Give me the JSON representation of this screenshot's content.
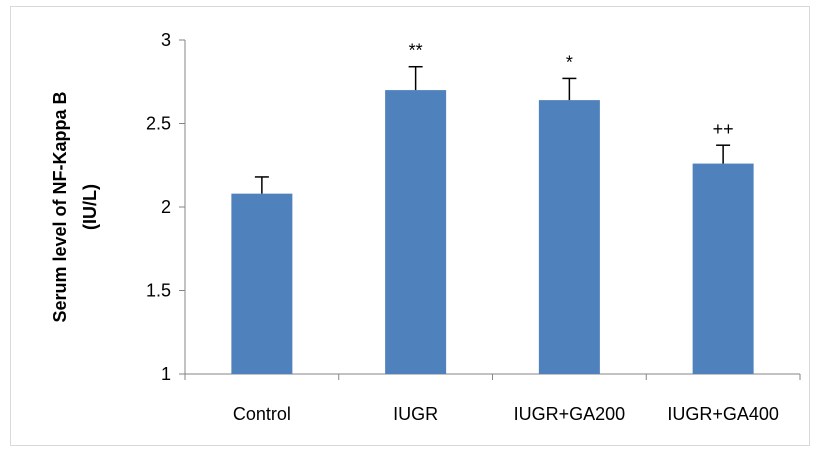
{
  "chart_data": {
    "type": "bar",
    "categories": [
      "Control",
      "IUGR",
      "IUGR+GA200",
      "IUGR+GA400"
    ],
    "values": [
      2.08,
      2.7,
      2.64,
      2.26
    ],
    "errors": [
      0.1,
      0.14,
      0.13,
      0.11
    ],
    "annotations": [
      "",
      "**",
      "*",
      "++"
    ],
    "ylabel_lines": [
      "Serum level of NF-Kappa B",
      "(IU/L)"
    ],
    "ylim": [
      1,
      3
    ],
    "yticks": [
      1,
      1.5,
      2,
      2.5,
      3
    ],
    "ytick_labels": [
      "1",
      "1.5",
      "2",
      "2.5",
      "3"
    ],
    "grid": false,
    "legend": "none",
    "bar_color": "#4f81bd",
    "axis_color": "#868686"
  }
}
